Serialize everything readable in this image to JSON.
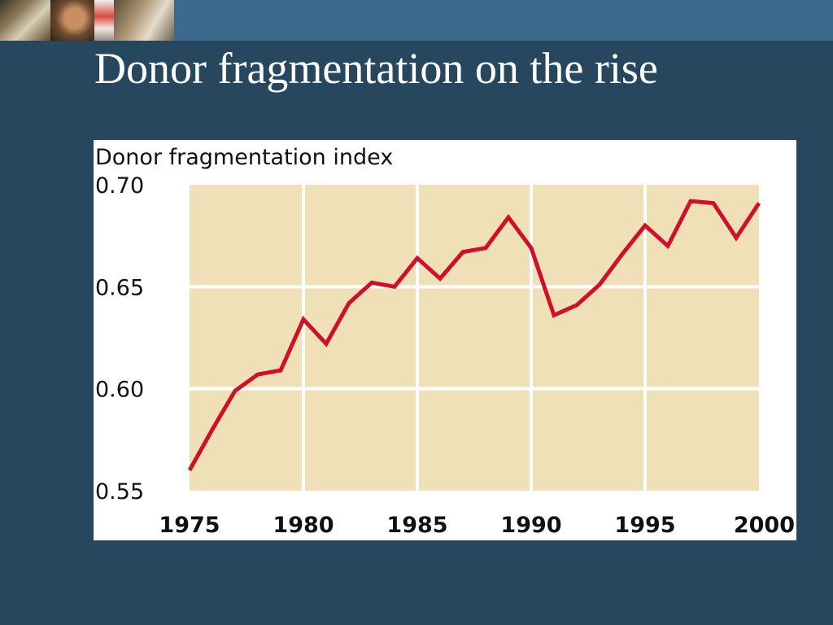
{
  "slide": {
    "title": "Donor fragmentation on the rise"
  },
  "colors": {
    "background": "#26475e",
    "top_band": "#3b6a8e",
    "plot_fill": "#efe0b8",
    "grid": "#ffffff",
    "line": "#d0102a"
  },
  "chart_data": {
    "type": "line",
    "title": "Donor fragmentation index",
    "xlabel": "",
    "ylabel": "",
    "xlim": [
      1975,
      2000
    ],
    "ylim": [
      0.55,
      0.7
    ],
    "x_ticks": [
      1975,
      1980,
      1985,
      1990,
      1995,
      2000
    ],
    "y_ticks": [
      "0.55",
      "0.60",
      "0.65",
      "0.70"
    ],
    "grid": true,
    "series": [
      {
        "x": [
          1975,
          1976,
          1977,
          1978,
          1979,
          1980,
          1981,
          1982,
          1983,
          1984,
          1985,
          1986,
          1987,
          1988,
          1989,
          1990,
          1991,
          1992,
          1993,
          1994,
          1995,
          1996,
          1997,
          1998,
          1999,
          2000
        ],
        "values": [
          0.56,
          0.58,
          0.599,
          0.607,
          0.609,
          0.634,
          0.622,
          0.642,
          0.652,
          0.65,
          0.664,
          0.654,
          0.667,
          0.669,
          0.684,
          0.669,
          0.636,
          0.641,
          0.651,
          0.666,
          0.68,
          0.67,
          0.692,
          0.691,
          0.674,
          0.691
        ]
      }
    ]
  }
}
